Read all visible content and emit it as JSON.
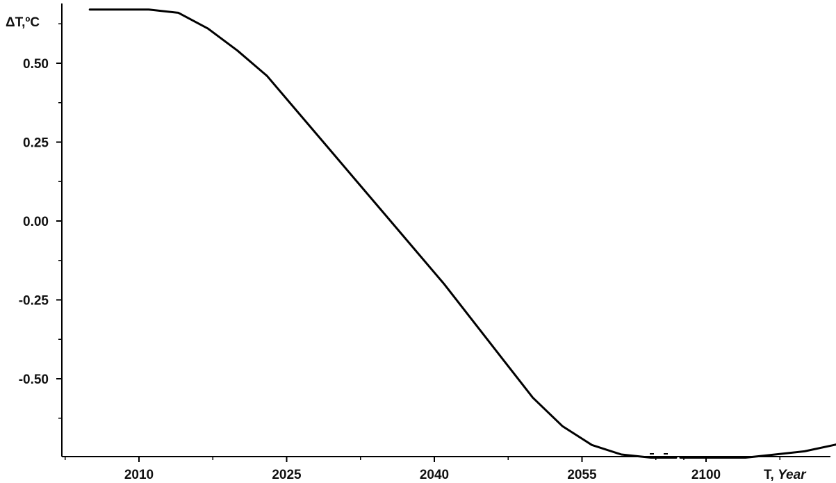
{
  "chart_data": {
    "type": "line",
    "ylabel": "ΔT,ºC",
    "xlabel_prefix": "T, ",
    "xlabel_italic": "Year",
    "x_ticks": [
      "2010",
      "2025",
      "2040",
      "2055",
      "2100"
    ],
    "y_ticks": [
      "0.50",
      "0.25",
      "0.00",
      "-0.25",
      "-0.50"
    ],
    "y_tick_values": [
      0.5,
      0.25,
      0.0,
      -0.25,
      -0.5
    ],
    "ylim": [
      -0.75,
      0.67
    ],
    "x_axis_break": "between 2055 and 2100",
    "grid": false,
    "series": [
      {
        "style": "solid",
        "x": [
          2005,
          2008,
          2011,
          2014,
          2017,
          2020,
          2023,
          2026,
          2029,
          2032,
          2035,
          2038,
          2041,
          2044,
          2047,
          2050,
          2053,
          2056,
          2059,
          2062,
          2064
        ],
        "y": [
          0.67,
          0.67,
          0.67,
          0.66,
          0.61,
          0.54,
          0.46,
          0.35,
          0.24,
          0.13,
          0.02,
          -0.09,
          -0.2,
          -0.32,
          -0.44,
          -0.56,
          -0.65,
          -0.71,
          -0.74,
          -0.75,
          -0.75
        ]
      },
      {
        "style": "dashed",
        "x": [
          2064,
          2098
        ],
        "y": [
          -0.75,
          -0.75
        ]
      },
      {
        "style": "solid",
        "x": [
          2098,
          2101,
          2104,
          2107,
          2110,
          2113,
          2116
        ],
        "y": [
          -0.75,
          -0.75,
          -0.75,
          -0.74,
          -0.73,
          -0.71,
          -0.69
        ]
      }
    ]
  }
}
